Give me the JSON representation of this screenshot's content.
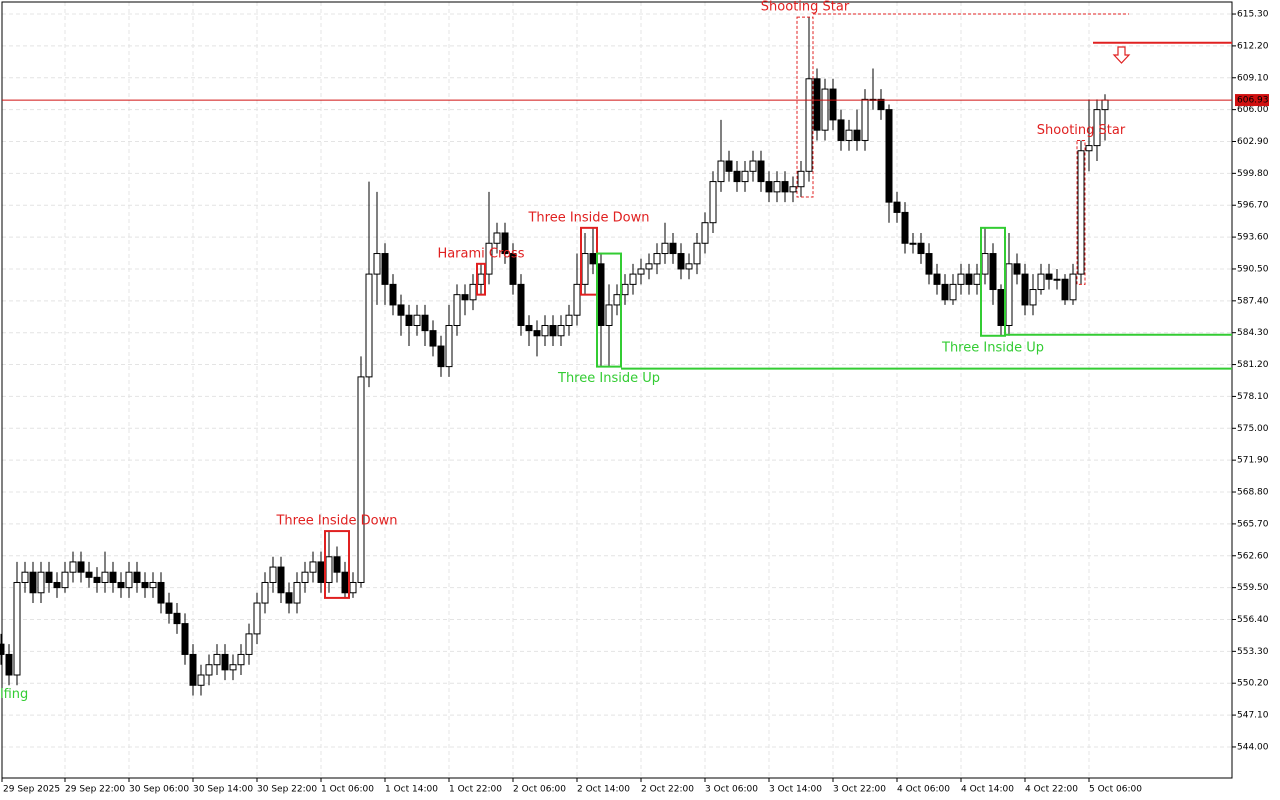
{
  "chart_data": {
    "type": "candlestick",
    "categories": [
      "29 Sep 2025",
      null,
      null,
      null,
      null,
      null,
      null,
      null,
      "29 Sep 22:00",
      null,
      null,
      null,
      null,
      null,
      null,
      null,
      "30 Sep 06:00",
      null,
      null,
      null,
      null,
      null,
      null,
      null,
      "30 Sep 14:00",
      null,
      null,
      null,
      null,
      null,
      null,
      null,
      "30 Sep 22:00",
      null,
      null,
      null,
      null,
      null,
      null,
      null,
      "1 Oct 06:00",
      null,
      null,
      null,
      null,
      null,
      null,
      null,
      "1 Oct 14:00",
      null,
      null,
      null,
      null,
      null,
      null,
      null,
      "1 Oct 22:00",
      null,
      null,
      null,
      null,
      null,
      null,
      null,
      "2 Oct 06:00",
      null,
      null,
      null,
      null,
      null,
      null,
      null,
      "2 Oct 14:00",
      null,
      null,
      null,
      null,
      null,
      null,
      null,
      "2 Oct 22:00",
      null,
      null,
      null,
      null,
      null,
      null,
      null,
      "3 Oct 06:00",
      null,
      null,
      null,
      null,
      null,
      null,
      null,
      "3 Oct 14:00",
      null,
      null,
      null,
      null,
      null,
      null,
      null,
      "3 Oct 22:00",
      null,
      null,
      null,
      null,
      null,
      null,
      null,
      "4 Oct 06:00",
      null,
      null,
      null,
      null,
      null,
      null,
      null,
      "4 Oct 14:00",
      null,
      null,
      null,
      null,
      null,
      null,
      null,
      "4 Oct 22:00",
      null,
      null,
      null,
      null,
      null,
      null,
      null,
      "5 Oct 06:00",
      null,
      null
    ],
    "open": [
      554,
      553,
      551,
      560,
      561,
      559,
      561,
      560,
      559.5,
      561,
      562,
      561,
      560.5,
      560,
      561,
      560,
      559.5,
      561,
      560,
      559.5,
      560,
      558,
      557,
      556,
      553,
      550,
      551,
      552,
      553,
      551.5,
      552,
      553,
      555,
      558,
      560,
      561.5,
      559,
      558,
      560,
      561,
      562,
      560,
      562.5,
      561,
      559,
      560,
      580,
      590,
      592,
      589,
      587,
      586,
      585,
      586,
      584.5,
      583,
      581,
      585,
      588,
      587.5,
      589,
      590,
      593,
      594,
      592,
      589,
      585,
      584.5,
      584,
      585,
      584,
      585,
      586,
      589,
      592,
      591,
      585,
      587,
      588,
      589,
      590,
      590.5,
      591,
      592,
      593,
      592,
      590.5,
      591,
      593,
      595,
      599,
      601,
      600,
      599,
      600,
      601,
      599,
      598,
      599,
      598,
      598.5,
      600,
      609,
      604,
      608,
      605,
      603,
      604,
      603,
      607,
      607,
      606,
      597,
      596,
      593,
      593,
      592,
      590,
      589,
      587.5,
      589,
      590,
      589,
      590,
      592,
      588.5,
      585,
      591,
      590,
      587,
      588.5,
      590,
      589.5,
      589.5,
      587.5,
      590,
      602,
      602.5,
      606
    ],
    "high": [
      555,
      554,
      562,
      562,
      562,
      562,
      562,
      561,
      562,
      563,
      563,
      562,
      561.5,
      563,
      562,
      561,
      562,
      562,
      561,
      561,
      561,
      559,
      558,
      557,
      554,
      552,
      553,
      554,
      554,
      553,
      554,
      556,
      559,
      561,
      562.5,
      562.5,
      560,
      561,
      562,
      563,
      563,
      565,
      563.5,
      562,
      561,
      582,
      599,
      598,
      593,
      590,
      588,
      587,
      587,
      587,
      585.5,
      584,
      587,
      589,
      589,
      590,
      591,
      598,
      595,
      595,
      593,
      590,
      586,
      585.5,
      586,
      586,
      586,
      587,
      592,
      594,
      594.5,
      592,
      589,
      589,
      590,
      591,
      591.5,
      592,
      593,
      595,
      594,
      593,
      592,
      594,
      596,
      600,
      605,
      602,
      601,
      601,
      602,
      602,
      600,
      600,
      600,
      599.5,
      601,
      615,
      610,
      609,
      609,
      606,
      605,
      606,
      608,
      610,
      608,
      606.5,
      598,
      597,
      594,
      594,
      593,
      591,
      590,
      590,
      591,
      591,
      591,
      594.5,
      593,
      589,
      594,
      592,
      591,
      590,
      591,
      591,
      590.5,
      590,
      591,
      603,
      607,
      607,
      607.5
    ],
    "low": [
      552,
      550,
      550,
      559,
      558,
      558,
      559,
      558.5,
      559,
      560,
      560,
      559.5,
      559,
      559,
      559,
      558.5,
      558.5,
      559,
      558.5,
      558.5,
      557,
      556,
      555,
      552,
      549,
      549,
      550,
      551,
      550.5,
      550.5,
      551,
      552,
      554,
      557,
      559,
      558,
      557,
      557,
      559,
      560,
      559,
      559,
      560,
      558.5,
      558.5,
      559.5,
      579,
      587,
      587,
      586,
      584,
      583,
      584,
      583,
      582,
      580,
      580,
      584,
      586,
      586.5,
      588,
      589,
      592,
      591,
      588,
      584,
      583,
      582,
      583,
      583,
      583,
      584,
      585,
      588,
      590,
      581,
      581,
      586,
      587,
      588,
      589,
      589.5,
      590,
      591,
      591,
      589.5,
      589.5,
      590,
      592,
      594,
      598,
      599,
      598,
      598,
      599,
      598,
      597,
      597,
      597,
      597,
      597.5,
      599,
      603,
      603,
      604,
      602,
      602,
      602,
      602,
      606,
      605,
      595,
      595,
      592,
      592,
      591,
      589,
      588,
      587,
      587,
      588,
      588,
      588,
      589,
      587,
      584,
      584,
      589,
      586,
      586,
      588,
      588.5,
      588.5,
      587,
      587,
      589,
      600,
      601,
      603
    ],
    "close": [
      553,
      551,
      560,
      561,
      559,
      561,
      560,
      559.5,
      561,
      562,
      561,
      560.5,
      560,
      561,
      560,
      559.5,
      561,
      560,
      559.5,
      560,
      558,
      557,
      556,
      553,
      550,
      551,
      552,
      553,
      551.5,
      552,
      553,
      555,
      558,
      560,
      561.5,
      559,
      558,
      560,
      561,
      562,
      560,
      562.5,
      561,
      559,
      560,
      580,
      590,
      592,
      589,
      587,
      586,
      585,
      586,
      584.5,
      583,
      581,
      585,
      588,
      587.5,
      589,
      590,
      593,
      594,
      592,
      589,
      585,
      584.5,
      584,
      585,
      584,
      585,
      586,
      589,
      592,
      591,
      585,
      587,
      588,
      589,
      590,
      590.5,
      591,
      592,
      593,
      592,
      590.5,
      591,
      593,
      595,
      599,
      601,
      600,
      599,
      600,
      601,
      599,
      598,
      599,
      598,
      598.5,
      600,
      609,
      604,
      608,
      605,
      603,
      604,
      603,
      607,
      607,
      606,
      597,
      596,
      593,
      593,
      592,
      590,
      589,
      587.5,
      589,
      590,
      589,
      590,
      592,
      588.5,
      585,
      591,
      590,
      587,
      588.5,
      590,
      589.5,
      589.5,
      587.5,
      590,
      602,
      602.5,
      606,
      606.93
    ],
    "up_color": "#ffffff",
    "down_color": "#000000",
    "outline_color": "#000000",
    "ylim": [
      540.98,
      616.47
    ],
    "yticks": [
      {
        "value": 544,
        "label": "544.00"
      },
      {
        "value": 547.1,
        "label": "547.10"
      },
      {
        "value": 550.2,
        "label": "550.20"
      },
      {
        "value": 553.3,
        "label": "553.30"
      },
      {
        "value": 556.4,
        "label": "556.40"
      },
      {
        "value": 559.5,
        "label": "559.50"
      },
      {
        "value": 562.6,
        "label": "562.60"
      },
      {
        "value": 565.7,
        "label": "565.70"
      },
      {
        "value": 568.8,
        "label": "568.80"
      },
      {
        "value": 571.9,
        "label": "571.90"
      },
      {
        "value": 575,
        "label": "575.00"
      },
      {
        "value": 578.1,
        "label": "578.10"
      },
      {
        "value": 581.2,
        "label": "581.20"
      },
      {
        "value": 584.3,
        "label": "584.30"
      },
      {
        "value": 587.4,
        "label": "587.40"
      },
      {
        "value": 590.5,
        "label": "590.50"
      },
      {
        "value": 593.6,
        "label": "593.60"
      },
      {
        "value": 596.7,
        "label": "596.70"
      },
      {
        "value": 599.8,
        "label": "599.80"
      },
      {
        "value": 602.9,
        "label": "602.90"
      },
      {
        "value": 606,
        "label": "606.00"
      },
      {
        "value": 609.1,
        "label": "609.10"
      },
      {
        "value": 612.2,
        "label": "612.20"
      },
      {
        "value": 615.3,
        "label": "615.30"
      }
    ],
    "grid": true,
    "current_price": 606.93,
    "current_price_color": "#d01010",
    "patterns": [
      {
        "label": "lfing",
        "color": "#33cc33",
        "start": 0,
        "end": 0,
        "place": "below",
        "box": false
      },
      {
        "label": "Three Inside Down",
        "color": "#e02020",
        "start": 41,
        "end": 43,
        "place": "above",
        "box": true
      },
      {
        "label": "Harami Cross",
        "color": "#e02020",
        "start": 60,
        "end": 60,
        "place": "above",
        "box": true
      },
      {
        "label": "Three Inside Down",
        "color": "#e02020",
        "start": 73,
        "end": 74,
        "place": "above",
        "box": true
      },
      {
        "label": "Three Inside Up",
        "color": "#33cc33",
        "start": 75,
        "end": 77,
        "place": "below",
        "box": true
      },
      {
        "label": "Shooting Star",
        "color": "#e02020",
        "start": 100,
        "end": 101,
        "place": "above",
        "box": true,
        "dashed": true
      },
      {
        "label": "Three Inside Up",
        "color": "#33cc33",
        "start": 123,
        "end": 125,
        "place": "below",
        "box": true
      },
      {
        "label": "Shooting Star",
        "color": "#e02020",
        "start": 135,
        "end": 135,
        "place": "above",
        "box": true,
        "dashed": true
      }
    ],
    "levels": [
      {
        "value": 615.3,
        "color": "#e02020",
        "start": 101,
        "end": 141,
        "dashed": true
      },
      {
        "value": 612.5,
        "color": "#e02020",
        "start": 136,
        "dashed": false
      },
      {
        "value": 584.1,
        "color": "#33cc33",
        "start": 125,
        "dashed": false
      },
      {
        "value": 580.8,
        "color": "#33cc33",
        "start": 77,
        "dashed": false
      }
    ]
  }
}
